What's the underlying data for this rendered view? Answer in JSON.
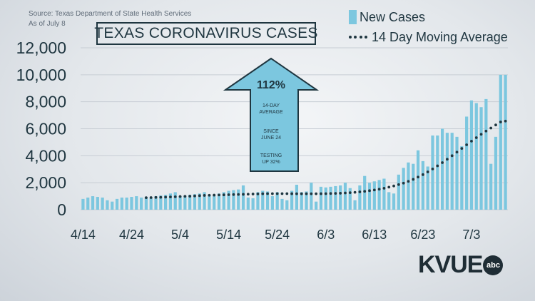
{
  "source": {
    "line1": "Source: Texas Department of State Health Services",
    "line2": "As of July 8"
  },
  "title": "TEXAS CORONAVIRUS CASES",
  "legend": {
    "new_cases": "New Cases",
    "moving_average": "14 Day Moving Average"
  },
  "annotation": {
    "percent": "112%",
    "line1": "14-DAY",
    "line2": "AVERAGE",
    "line3": "SINCE",
    "line4": "JUNE 24",
    "line5": "TESTING",
    "line6": "UP 32%"
  },
  "logo": {
    "text": "KVUE",
    "badge": "abc"
  },
  "colors": {
    "bar": "#7cc7df",
    "line": "#1f3640",
    "arrow_fill": "#7cc7df",
    "text": "#1f3640"
  },
  "chart_data": {
    "type": "bar",
    "title": "TEXAS CORONAVIRUS CASES",
    "ylim": [
      0,
      12000
    ],
    "y_ticks": [
      "12,000",
      "10,000",
      "8,000",
      "6,000",
      "4,000",
      "2,000",
      "0"
    ],
    "y_tick_values": [
      12000,
      10000,
      8000,
      6000,
      4000,
      2000,
      0
    ],
    "x_ticks": [
      "4/14",
      "4/24",
      "5/4",
      "5/14",
      "5/24",
      "6/3",
      "6/13",
      "6/23",
      "7/3"
    ],
    "x_tick_day_index": [
      0,
      10,
      20,
      30,
      40,
      50,
      60,
      70,
      80
    ],
    "start_date": "4/14",
    "series": [
      {
        "name": "New Cases",
        "type": "bar",
        "values": [
          800,
          900,
          1000,
          950,
          900,
          700,
          600,
          800,
          900,
          900,
          950,
          1000,
          900,
          950,
          900,
          1000,
          1050,
          1100,
          1200,
          1300,
          1000,
          1050,
          1100,
          1150,
          1200,
          1300,
          1100,
          1050,
          1200,
          1300,
          1400,
          1450,
          1500,
          1800,
          900,
          850,
          1300,
          1400,
          1350,
          1000,
          1300,
          800,
          700,
          1400,
          1850,
          1300,
          1350,
          2000,
          600,
          1700,
          1650,
          1700,
          1750,
          1800,
          2000,
          1600,
          700,
          1800,
          2500,
          2000,
          2100,
          2200,
          2300,
          1300,
          1200,
          2600,
          3100,
          3500,
          3400,
          4400,
          3600,
          3200,
          5500,
          5500,
          6000,
          5700,
          5700,
          5400,
          4700,
          6900,
          8100,
          7900,
          7600,
          8200,
          3400,
          5400,
          10000,
          10000
        ]
      },
      {
        "name": "14 Day Moving Average",
        "type": "line",
        "start_index": 13,
        "values": [
          890,
          900,
          910,
          920,
          930,
          945,
          960,
          975,
          990,
          1000,
          1020,
          1040,
          1060,
          1070,
          1080,
          1090,
          1100,
          1110,
          1120,
          1130,
          1140,
          1150,
          1160,
          1170,
          1180,
          1190,
          1190,
          1190,
          1190,
          1190,
          1185,
          1180,
          1180,
          1180,
          1180,
          1180,
          1185,
          1190,
          1200,
          1210,
          1220,
          1240,
          1260,
          1290,
          1320,
          1360,
          1410,
          1460,
          1520,
          1590,
          1670,
          1760,
          1860,
          1970,
          2100,
          2250,
          2420,
          2600,
          2800,
          3020,
          3250,
          3490,
          3740,
          4000,
          4270,
          4540,
          4810,
          5080,
          5340,
          5590,
          5830,
          6050,
          6280,
          6500,
          6570
        ]
      }
    ]
  }
}
